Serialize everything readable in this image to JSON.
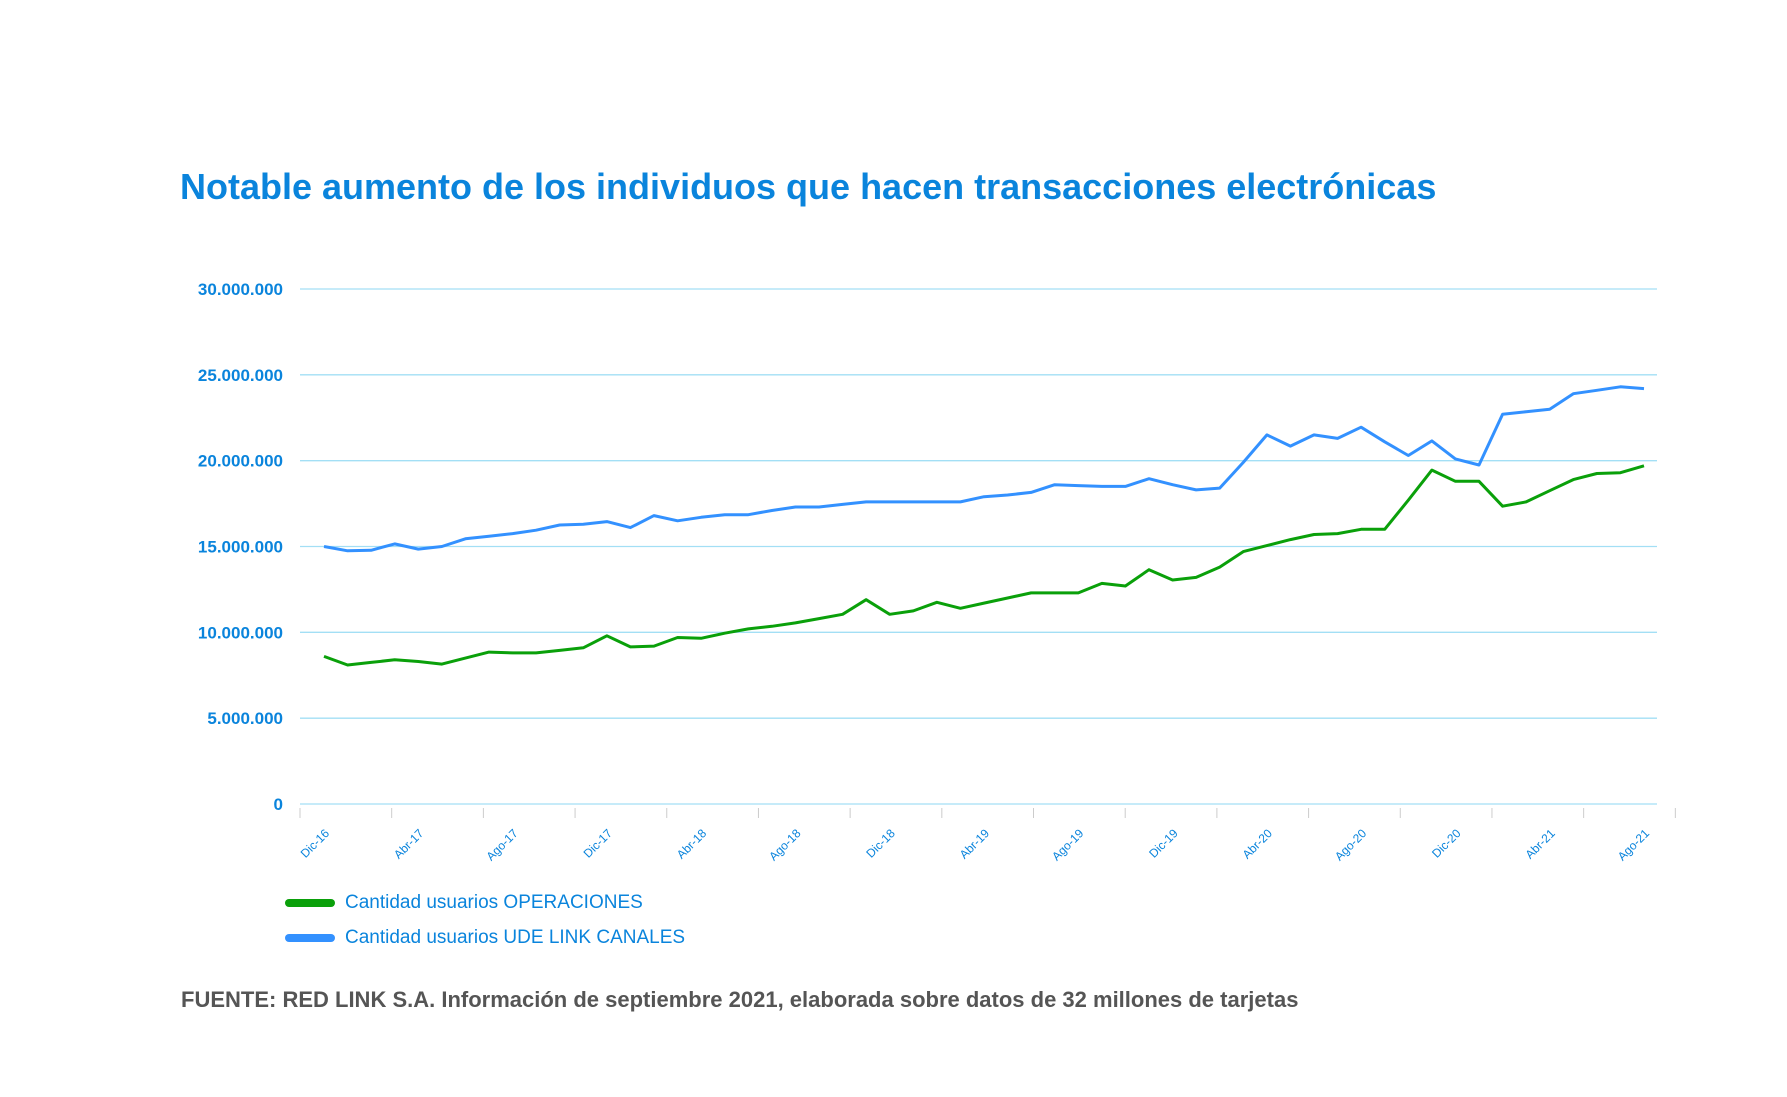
{
  "chart_data": {
    "type": "line",
    "title": "Notable aumento de los individuos que hacen transacciones electrónicas",
    "xlabel": "",
    "ylabel": "",
    "ylim": [
      0,
      30000000
    ],
    "yticks": [
      0,
      5000000,
      10000000,
      15000000,
      20000000,
      25000000,
      30000000
    ],
    "ytick_labels": [
      "0",
      "5.000.000",
      "10.000.000",
      "15.000.000",
      "20.000.000",
      "25.000.000",
      "30.000.000"
    ],
    "x_start": "Dic-16",
    "x_end": "Ago-21",
    "xtick_labels": [
      "Dic-16",
      "Abr-17",
      "Ago-17",
      "Dic-17",
      "Abr-18",
      "Ago-18",
      "Dic-18",
      "Abr-19",
      "Ago-19",
      "Dic-19",
      "Abr-20",
      "Ago-20",
      "Dic-20",
      "Abr-21",
      "Ago-21"
    ],
    "grid": true,
    "legend_position": "bottom-left",
    "series": [
      {
        "name": "Cantidad usuarios OPERACIONES",
        "color": "#0aa00a",
        "values": [
          8600000,
          8100000,
          8250000,
          8400000,
          8300000,
          8150000,
          8500000,
          8850000,
          8800000,
          8800000,
          8950000,
          9100000,
          9800000,
          9150000,
          9200000,
          9700000,
          9650000,
          9950000,
          10200000,
          10350000,
          10550000,
          10800000,
          11050000,
          11900000,
          11050000,
          11250000,
          11750000,
          11400000,
          11700000,
          12000000,
          12300000,
          12300000,
          12300000,
          12850000,
          12700000,
          13650000,
          13050000,
          13200000,
          13800000,
          14700000,
          15050000,
          15400000,
          15700000,
          15750000,
          16000000,
          16000000,
          17700000,
          19450000,
          18800000,
          18800000,
          17350000,
          17600000,
          18250000,
          18900000,
          19250000,
          19300000,
          19700000
        ]
      },
      {
        "name": "Cantidad usuarios UDE LINK CANALES",
        "color": "#3391ff",
        "values": [
          15000000,
          14750000,
          14780000,
          15150000,
          14850000,
          15000000,
          15450000,
          15600000,
          15750000,
          15950000,
          16250000,
          16300000,
          16450000,
          16100000,
          16800000,
          16500000,
          16700000,
          16850000,
          16850000,
          17100000,
          17300000,
          17300000,
          17450000,
          17600000,
          17600000,
          17600000,
          17600000,
          17600000,
          17900000,
          18000000,
          18150000,
          18600000,
          18550000,
          18500000,
          18500000,
          18950000,
          18600000,
          18300000,
          18400000,
          19900000,
          21500000,
          20850000,
          21500000,
          21300000,
          21950000,
          21100000,
          20300000,
          21150000,
          20100000,
          19750000,
          22700000,
          22850000,
          23000000,
          23900000,
          24100000,
          24300000,
          24200000
        ]
      }
    ]
  },
  "source": "FUENTE: RED LINK S.A. Información de septiembre 2021, elaborada sobre datos de 32 millones de tarjetas"
}
